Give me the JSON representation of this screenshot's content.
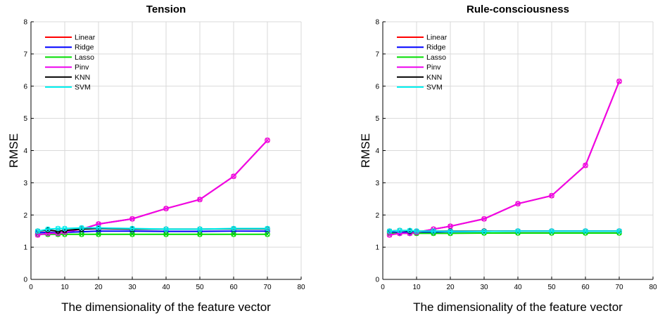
{
  "chart_data": [
    {
      "type": "line",
      "title": "Tension",
      "xlabel": "The dimensionality of the feature vector",
      "ylabel": "RMSE",
      "xlim": [
        0,
        80
      ],
      "ylim": [
        0,
        8
      ],
      "xticks": [
        0,
        10,
        20,
        30,
        40,
        50,
        60,
        70,
        80
      ],
      "yticks": [
        0,
        1,
        2,
        3,
        4,
        5,
        6,
        7,
        8
      ],
      "grid": true,
      "legend_position": "top-left",
      "x": [
        2,
        5,
        8,
        10,
        15,
        20,
        30,
        40,
        50,
        60,
        70
      ],
      "series": [
        {
          "name": "Linear",
          "color": "#ff0000",
          "values": [
            1.38,
            1.43,
            1.43,
            1.47,
            1.56,
            1.72,
            1.88,
            2.2,
            2.48,
            3.2,
            4.32
          ]
        },
        {
          "name": "Ridge",
          "color": "#0000ff",
          "values": [
            1.45,
            1.46,
            1.45,
            1.46,
            1.48,
            1.5,
            1.5,
            1.49,
            1.49,
            1.5,
            1.5
          ]
        },
        {
          "name": "Lasso",
          "color": "#00dd00",
          "values": [
            1.4,
            1.4,
            1.4,
            1.4,
            1.4,
            1.4,
            1.4,
            1.4,
            1.4,
            1.4,
            1.4
          ]
        },
        {
          "name": "Pinv",
          "color": "#ee00ee",
          "values": [
            1.38,
            1.43,
            1.43,
            1.47,
            1.56,
            1.72,
            1.88,
            2.2,
            2.48,
            3.2,
            4.32
          ]
        },
        {
          "name": "KNN",
          "color": "#000000",
          "values": [
            1.5,
            1.53,
            1.5,
            1.52,
            1.56,
            1.58,
            1.56,
            1.56,
            1.56,
            1.57,
            1.57
          ]
        },
        {
          "name": "SVM",
          "color": "#00eeee",
          "values": [
            1.5,
            1.56,
            1.58,
            1.58,
            1.6,
            1.6,
            1.58,
            1.56,
            1.56,
            1.58,
            1.58
          ]
        }
      ]
    },
    {
      "type": "line",
      "title": "Rule-consciousness",
      "xlabel": "The dimensionality of the feature vector",
      "ylabel": "RMSE",
      "xlim": [
        0,
        80
      ],
      "ylim": [
        0,
        8
      ],
      "xticks": [
        0,
        10,
        20,
        30,
        40,
        50,
        60,
        70,
        80
      ],
      "yticks": [
        0,
        1,
        2,
        3,
        4,
        5,
        6,
        7,
        8
      ],
      "grid": true,
      "legend_position": "top-left",
      "x": [
        2,
        5,
        8,
        10,
        15,
        20,
        30,
        40,
        50,
        60,
        70
      ],
      "series": [
        {
          "name": "Linear",
          "color": "#ff0000",
          "values": [
            1.38,
            1.43,
            1.43,
            1.46,
            1.56,
            1.65,
            1.88,
            2.35,
            2.6,
            3.54,
            6.15
          ]
        },
        {
          "name": "Ridge",
          "color": "#0000ff",
          "values": [
            1.46,
            1.46,
            1.46,
            1.46,
            1.47,
            1.48,
            1.49,
            1.5,
            1.5,
            1.5,
            1.5
          ]
        },
        {
          "name": "Lasso",
          "color": "#00dd00",
          "values": [
            1.43,
            1.43,
            1.43,
            1.43,
            1.43,
            1.43,
            1.44,
            1.44,
            1.44,
            1.44,
            1.44
          ]
        },
        {
          "name": "Pinv",
          "color": "#ee00ee",
          "values": [
            1.38,
            1.43,
            1.43,
            1.46,
            1.56,
            1.65,
            1.88,
            2.35,
            2.6,
            3.54,
            6.15
          ]
        },
        {
          "name": "KNN",
          "color": "#000000",
          "values": [
            1.5,
            1.52,
            1.5,
            1.5,
            1.5,
            1.5,
            1.5,
            1.5,
            1.5,
            1.5,
            1.5
          ]
        },
        {
          "name": "SVM",
          "color": "#00eeee",
          "values": [
            1.5,
            1.52,
            1.52,
            1.5,
            1.5,
            1.49,
            1.49,
            1.5,
            1.5,
            1.5,
            1.5
          ]
        }
      ]
    }
  ]
}
